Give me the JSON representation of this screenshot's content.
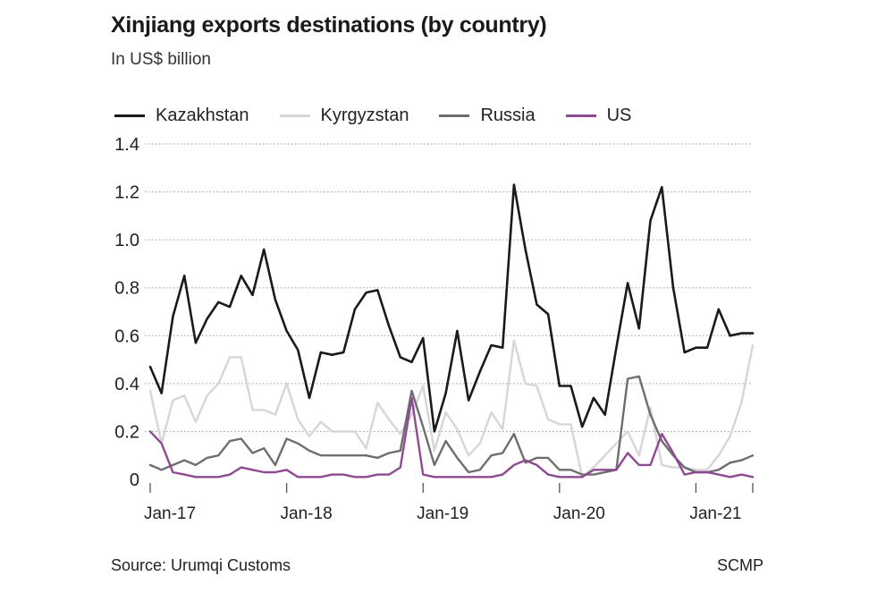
{
  "header": {
    "title": "Xinjiang exports destinations (by country)",
    "subtitle": "In US$ billion"
  },
  "footer": {
    "source": "Source: Urumqi Customs",
    "credit": "SCMP"
  },
  "colors": {
    "Kazakhstan": "#1a1a1a",
    "Kyrgyzstan": "#d6d6d6",
    "Russia": "#6e6e6e",
    "US": "#8e4a92",
    "grid": "#9a9a9a"
  },
  "chart_data": {
    "type": "line",
    "title": "Xinjiang exports destinations (by country)",
    "subtitle": "In US$ billion",
    "xlabel": "",
    "ylabel": "",
    "ylim": [
      0,
      1.4
    ],
    "yticks": [
      "1.4",
      "1.2",
      "1.0",
      "0.8",
      "0.6",
      "0.4",
      "0.2",
      "0"
    ],
    "ytick_values": [
      1.4,
      1.2,
      1.0,
      0.8,
      0.6,
      0.4,
      0.2,
      0
    ],
    "x_start": "Jan-17",
    "x_end": "Jun-21",
    "xticks": [
      {
        "label": "Jan-17",
        "index": 0
      },
      {
        "label": "Jan-18",
        "index": 12
      },
      {
        "label": "Jan-19",
        "index": 24
      },
      {
        "label": "Jan-20",
        "index": 36
      },
      {
        "label": "Jan-21",
        "index": 48
      }
    ],
    "grid": true,
    "legend_position": "top",
    "series": [
      {
        "name": "Kazakhstan",
        "values": [
          0.47,
          0.36,
          0.68,
          0.85,
          0.57,
          0.67,
          0.74,
          0.72,
          0.85,
          0.77,
          0.96,
          0.75,
          0.62,
          0.54,
          0.34,
          0.53,
          0.52,
          0.53,
          0.71,
          0.78,
          0.79,
          0.64,
          0.51,
          0.49,
          0.59,
          0.2,
          0.36,
          0.62,
          0.33,
          0.45,
          0.56,
          0.55,
          1.23,
          0.96,
          0.73,
          0.69,
          0.39,
          0.39,
          0.22,
          0.34,
          0.27,
          0.55,
          0.82,
          0.63,
          1.08,
          1.22,
          0.8,
          0.53,
          0.55,
          0.55,
          0.71,
          0.6,
          0.61,
          0.61
        ]
      },
      {
        "name": "Kyrgyzstan",
        "values": [
          0.37,
          0.15,
          0.33,
          0.35,
          0.24,
          0.35,
          0.4,
          0.51,
          0.51,
          0.29,
          0.29,
          0.27,
          0.4,
          0.25,
          0.18,
          0.24,
          0.2,
          0.2,
          0.2,
          0.13,
          0.32,
          0.25,
          0.19,
          0.27,
          0.39,
          0.12,
          0.28,
          0.21,
          0.1,
          0.15,
          0.28,
          0.21,
          0.58,
          0.4,
          0.39,
          0.25,
          0.23,
          0.23,
          0.01,
          0.05,
          0.1,
          0.15,
          0.2,
          0.1,
          0.3,
          0.06,
          0.05,
          0.05,
          0.04,
          0.04,
          0.1,
          0.18,
          0.32,
          0.56
        ]
      },
      {
        "name": "Russia",
        "values": [
          0.06,
          0.04,
          0.06,
          0.08,
          0.06,
          0.09,
          0.1,
          0.16,
          0.17,
          0.11,
          0.13,
          0.06,
          0.17,
          0.15,
          0.12,
          0.1,
          0.1,
          0.1,
          0.1,
          0.1,
          0.09,
          0.11,
          0.12,
          0.37,
          0.22,
          0.06,
          0.16,
          0.09,
          0.03,
          0.04,
          0.1,
          0.11,
          0.19,
          0.07,
          0.09,
          0.09,
          0.04,
          0.04,
          0.02,
          0.02,
          0.03,
          0.04,
          0.42,
          0.43,
          0.27,
          0.16,
          0.1,
          0.05,
          0.03,
          0.03,
          0.04,
          0.07,
          0.08,
          0.1
        ]
      },
      {
        "name": "US",
        "values": [
          0.2,
          0.15,
          0.03,
          0.02,
          0.01,
          0.01,
          0.01,
          0.02,
          0.05,
          0.04,
          0.03,
          0.03,
          0.04,
          0.01,
          0.01,
          0.01,
          0.02,
          0.02,
          0.01,
          0.01,
          0.02,
          0.02,
          0.05,
          0.34,
          0.02,
          0.01,
          0.01,
          0.01,
          0.01,
          0.01,
          0.01,
          0.02,
          0.06,
          0.08,
          0.06,
          0.02,
          0.01,
          0.01,
          0.01,
          0.04,
          0.04,
          0.04,
          0.11,
          0.06,
          0.06,
          0.19,
          0.11,
          0.02,
          0.03,
          0.03,
          0.02,
          0.01,
          0.02,
          0.01
        ]
      }
    ]
  }
}
